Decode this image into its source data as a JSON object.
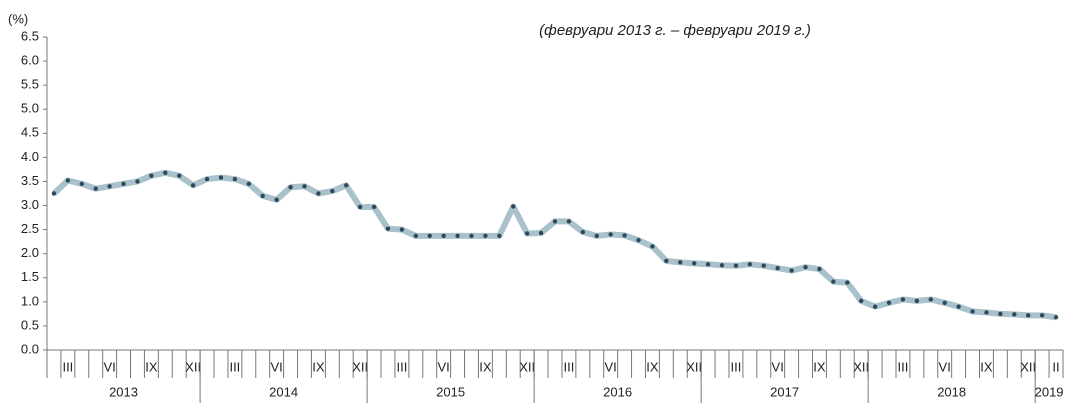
{
  "chart_data": {
    "type": "line",
    "subtitle": "(февруари 2013 г. – февруари 2019 г.)",
    "y_unit": "(%)",
    "categories": [
      null,
      "III",
      null,
      null,
      "VI",
      null,
      null,
      "IX",
      null,
      null,
      "XII",
      null,
      null,
      "III",
      null,
      null,
      "VI",
      null,
      null,
      "IX",
      null,
      null,
      "XII",
      null,
      null,
      "III",
      null,
      null,
      "VI",
      null,
      null,
      "IX",
      null,
      null,
      "XII",
      null,
      null,
      "III",
      null,
      null,
      "VI",
      null,
      null,
      "IX",
      null,
      null,
      "XII",
      null,
      null,
      "III",
      null,
      null,
      "VI",
      null,
      null,
      "IX",
      null,
      null,
      "XII",
      null,
      null,
      "III",
      null,
      null,
      "VI",
      null,
      null,
      "IX",
      null,
      null,
      "XII",
      null,
      "II"
    ],
    "years": [
      "2013",
      "2014",
      "2015",
      "2016",
      "2017",
      "2018",
      "2019"
    ],
    "series": [
      {
        "color": "#a9c1cb",
        "marker_color": "#2e4a5a",
        "values": [
          3.25,
          3.52,
          3.45,
          3.35,
          3.4,
          3.45,
          3.5,
          3.62,
          3.68,
          3.62,
          3.42,
          3.55,
          3.58,
          3.55,
          3.45,
          3.2,
          3.12,
          3.38,
          3.4,
          3.25,
          3.3,
          3.42,
          2.97,
          2.97,
          2.52,
          2.5,
          2.37,
          2.37,
          2.37,
          2.37,
          2.37,
          2.37,
          2.37,
          2.98,
          2.42,
          2.43,
          2.67,
          2.67,
          2.45,
          2.37,
          2.4,
          2.38,
          2.28,
          2.15,
          1.85,
          1.82,
          1.8,
          1.78,
          1.76,
          1.75,
          1.78,
          1.75,
          1.7,
          1.65,
          1.72,
          1.68,
          1.42,
          1.4,
          1.02,
          0.9,
          0.98,
          1.05,
          1.02,
          1.05,
          0.98,
          0.9,
          0.8,
          0.78,
          0.75,
          0.74,
          0.72,
          0.72,
          0.68
        ]
      }
    ],
    "ylim": [
      0,
      6.5
    ],
    "yticks": [
      {
        "value": 0,
        "label": "0.0"
      },
      0.5,
      {
        "value": 1,
        "label": "1.0"
      },
      1.5,
      {
        "value": 2,
        "label": "2.0"
      },
      2.5,
      {
        "value": 3,
        "label": "3.0"
      },
      3.5,
      {
        "value": 4,
        "label": "4.0"
      },
      4.5,
      {
        "value": 5,
        "label": "5.0"
      },
      5.5,
      {
        "value": 6,
        "label": "6.0"
      },
      6.5
    ]
  }
}
